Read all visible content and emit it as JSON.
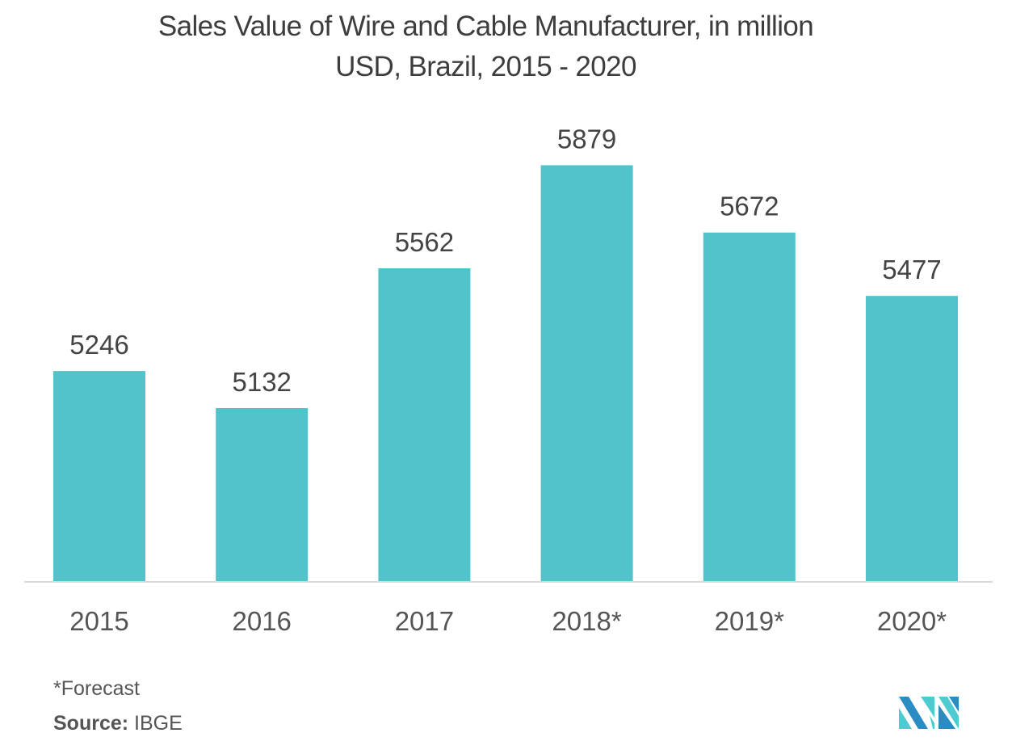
{
  "chart_data": {
    "type": "bar",
    "title": "Sales Value of Wire and Cable Manufacturer, in million USD, Brazil, 2015 - 2020",
    "title_lines": [
      "Sales Value of Wire and Cable Manufacturer, in million",
      "USD, Brazil, 2015 - 2020"
    ],
    "categories": [
      "2015",
      "2016",
      "2017",
      "2018*",
      "2019*",
      "2020*"
    ],
    "values": [
      5246,
      5132,
      5562,
      5879,
      5672,
      5477
    ],
    "data_labels": [
      "5246",
      "5132",
      "5562",
      "5879",
      "5672",
      "5477"
    ],
    "xlabel": "",
    "ylabel": "",
    "ylim": [
      4600,
      5900
    ],
    "y_axis_truncated": true,
    "y_axis_visible": false,
    "grid": false,
    "legend": null,
    "bar_color": "#51c3ca",
    "baseline_color": "#d9d9d9"
  },
  "footer": {
    "note": "*Forecast",
    "source_label": "Source:",
    "source_value": "IBGE"
  },
  "logo": {
    "icon": "mordor-intelligence-logo-icon",
    "colors": [
      "#2b8cc4",
      "#4ecbd0"
    ]
  }
}
